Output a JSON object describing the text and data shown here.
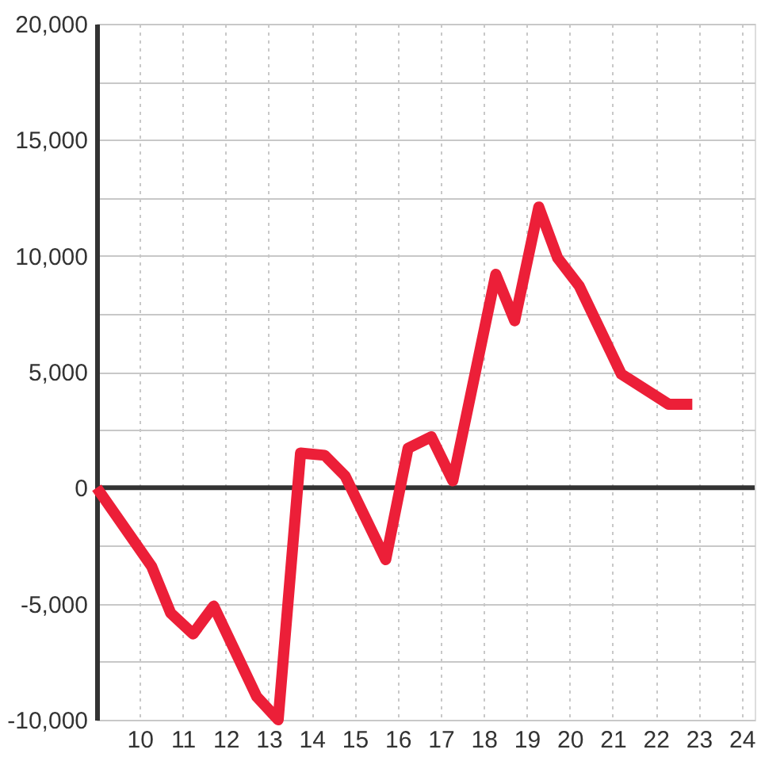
{
  "chart_data": {
    "type": "line",
    "x": [
      9.0,
      10.28,
      10.72,
      11.24,
      11.72,
      12.72,
      13.22,
      13.74,
      14.3,
      14.78,
      15.72,
      16.24,
      16.78,
      17.28,
      18.28,
      18.72,
      19.28,
      19.72,
      20.22,
      21.2,
      22.3,
      22.85
    ],
    "series": [
      {
        "color": "#ec1f38",
        "line_style": "solid",
        "values": [
          0,
          -3400,
          -5400,
          -6300,
          -5100,
          -9000,
          -10000,
          1500,
          1400,
          500,
          -3100,
          1700,
          2200,
          300,
          9200,
          7200,
          12100,
          9900,
          8700,
          4900,
          3600,
          3600
        ]
      }
    ],
    "xlim": [
      9,
      24.3
    ],
    "xticks": [
      10,
      11,
      12,
      13,
      14,
      15,
      16,
      17,
      18,
      19,
      20,
      21,
      22,
      23,
      24
    ],
    "ylim": [
      -10000,
      20000
    ],
    "yticks": [
      {
        "value": -10000,
        "label": "-10,000"
      },
      {
        "value": -7500,
        "label": null
      },
      {
        "value": -5000,
        "label": "-5,000"
      },
      {
        "value": -2500,
        "label": null
      },
      0,
      {
        "value": 2500,
        "label": null
      },
      {
        "value": 5000,
        "label": "5,000"
      },
      {
        "value": 7500,
        "label": null
      },
      {
        "value": 10000,
        "label": "10,000"
      },
      {
        "value": 12500,
        "label": null
      },
      {
        "value": 15000,
        "label": "15,000"
      },
      {
        "value": 17500,
        "label": null
      },
      {
        "value": 20000,
        "label": "20,000"
      }
    ],
    "grid": true,
    "ref_lines": [
      {
        "axis": "y",
        "value": 0,
        "color": "#333333"
      }
    ]
  }
}
